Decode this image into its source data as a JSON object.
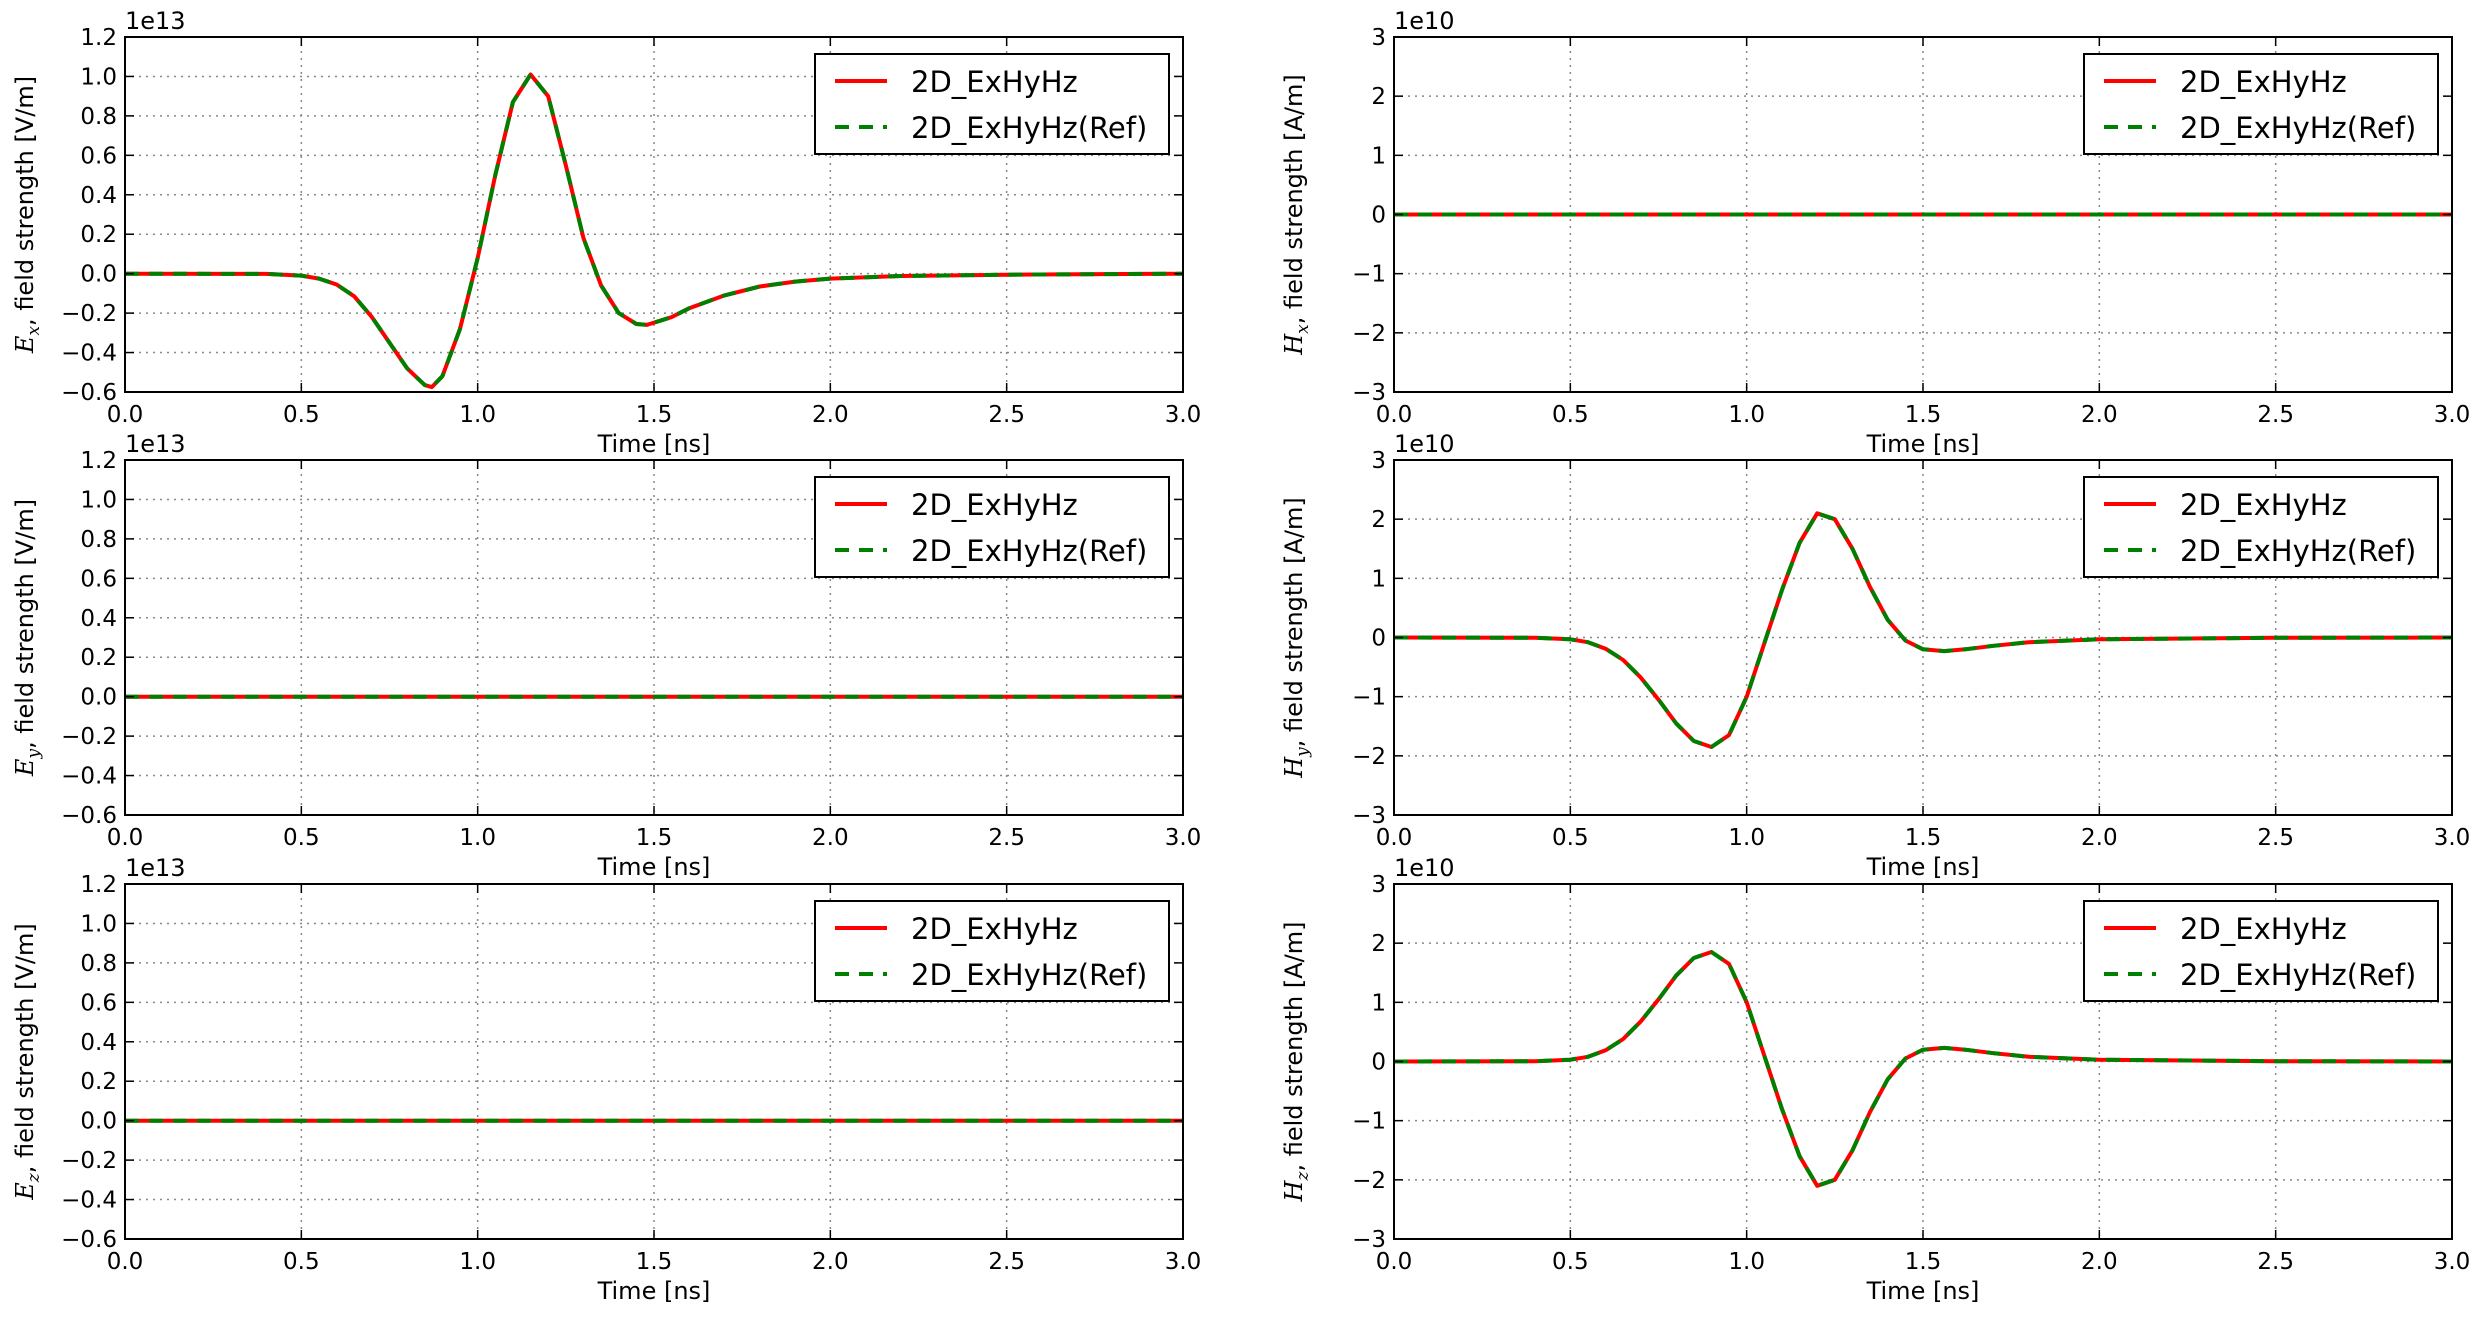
{
  "chart_data": [
    {
      "type": "line",
      "xlabel": "Time [ns]",
      "ylabel_symbol": "E",
      "ylabel_subscript": "x",
      "ylabel_text": ", field strength [V/m]",
      "exponent": "1e13",
      "xlim": [
        0.0,
        3.0
      ],
      "ylim": [
        -0.6,
        1.2
      ],
      "xticks": [
        "0.0",
        "0.5",
        "1.0",
        "1.5",
        "2.0",
        "2.5",
        "3.0"
      ],
      "yticks": [
        "−0.6",
        "−0.4",
        "−0.2",
        "0.0",
        "0.2",
        "0.4",
        "0.6",
        "0.8",
        "1.0",
        "1.2"
      ],
      "ytick_values": [
        -0.6,
        -0.4,
        -0.2,
        0.0,
        0.2,
        0.4,
        0.6,
        0.8,
        1.0,
        1.2
      ],
      "grid": true,
      "legend": "top-right",
      "series": [
        {
          "name": "2D_ExHyHz",
          "color": "#ff0000",
          "style": "solid",
          "x": [
            0.0,
            0.4,
            0.5,
            0.55,
            0.6,
            0.65,
            0.7,
            0.75,
            0.8,
            0.85,
            0.87,
            0.9,
            0.95,
            1.0,
            1.05,
            1.1,
            1.15,
            1.2,
            1.25,
            1.3,
            1.35,
            1.4,
            1.45,
            1.48,
            1.55,
            1.6,
            1.7,
            1.8,
            1.9,
            2.0,
            2.2,
            2.5,
            3.0
          ],
          "y": [
            0.0,
            -0.001,
            -0.01,
            -0.025,
            -0.055,
            -0.115,
            -0.22,
            -0.35,
            -0.48,
            -0.565,
            -0.575,
            -0.52,
            -0.28,
            0.08,
            0.5,
            0.87,
            1.01,
            0.9,
            0.55,
            0.18,
            -0.06,
            -0.2,
            -0.255,
            -0.26,
            -0.22,
            -0.175,
            -0.11,
            -0.065,
            -0.04,
            -0.025,
            -0.012,
            -0.005,
            0.0
          ]
        },
        {
          "name": "2D_ExHyHz(Ref)",
          "color": "#008000",
          "style": "dashed",
          "x": [
            0.0,
            0.4,
            0.5,
            0.55,
            0.6,
            0.65,
            0.7,
            0.75,
            0.8,
            0.85,
            0.87,
            0.9,
            0.95,
            1.0,
            1.05,
            1.1,
            1.15,
            1.2,
            1.25,
            1.3,
            1.35,
            1.4,
            1.45,
            1.48,
            1.55,
            1.6,
            1.7,
            1.8,
            1.9,
            2.0,
            2.2,
            2.5,
            3.0
          ],
          "y": [
            0.0,
            -0.001,
            -0.01,
            -0.025,
            -0.055,
            -0.115,
            -0.22,
            -0.35,
            -0.48,
            -0.565,
            -0.575,
            -0.52,
            -0.28,
            0.08,
            0.5,
            0.87,
            1.01,
            0.9,
            0.55,
            0.18,
            -0.06,
            -0.2,
            -0.255,
            -0.26,
            -0.22,
            -0.175,
            -0.11,
            -0.065,
            -0.04,
            -0.025,
            -0.012,
            -0.005,
            0.0
          ]
        }
      ]
    },
    {
      "type": "line",
      "xlabel": "Time [ns]",
      "ylabel_symbol": "H",
      "ylabel_subscript": "x",
      "ylabel_text": ", field strength [A/m]",
      "exponent": "1e10",
      "xlim": [
        0.0,
        3.0
      ],
      "ylim": [
        -3,
        3
      ],
      "xticks": [
        "0.0",
        "0.5",
        "1.0",
        "1.5",
        "2.0",
        "2.5",
        "3.0"
      ],
      "yticks": [
        "−3",
        "−2",
        "−1",
        "0",
        "1",
        "2",
        "3"
      ],
      "ytick_values": [
        -3,
        -2,
        -1,
        0,
        1,
        2,
        3
      ],
      "grid": true,
      "legend": "top-right",
      "series": [
        {
          "name": "2D_ExHyHz",
          "color": "#ff0000",
          "style": "solid",
          "x": [
            0.0,
            3.0
          ],
          "y": [
            0,
            0
          ]
        },
        {
          "name": "2D_ExHyHz(Ref)",
          "color": "#008000",
          "style": "dashed",
          "x": [
            0.0,
            3.0
          ],
          "y": [
            0,
            0
          ]
        }
      ]
    },
    {
      "type": "line",
      "xlabel": "Time [ns]",
      "ylabel_symbol": "E",
      "ylabel_subscript": "y",
      "ylabel_text": ", field strength [V/m]",
      "exponent": "1e13",
      "xlim": [
        0.0,
        3.0
      ],
      "ylim": [
        -0.6,
        1.2
      ],
      "xticks": [
        "0.0",
        "0.5",
        "1.0",
        "1.5",
        "2.0",
        "2.5",
        "3.0"
      ],
      "yticks": [
        "−0.6",
        "−0.4",
        "−0.2",
        "0.0",
        "0.2",
        "0.4",
        "0.6",
        "0.8",
        "1.0",
        "1.2"
      ],
      "ytick_values": [
        -0.6,
        -0.4,
        -0.2,
        0.0,
        0.2,
        0.4,
        0.6,
        0.8,
        1.0,
        1.2
      ],
      "grid": true,
      "legend": "top-right",
      "series": [
        {
          "name": "2D_ExHyHz",
          "color": "#ff0000",
          "style": "solid",
          "x": [
            0.0,
            3.0
          ],
          "y": [
            0,
            0
          ]
        },
        {
          "name": "2D_ExHyHz(Ref)",
          "color": "#008000",
          "style": "dashed",
          "x": [
            0.0,
            3.0
          ],
          "y": [
            0,
            0
          ]
        }
      ]
    },
    {
      "type": "line",
      "xlabel": "Time [ns]",
      "ylabel_symbol": "H",
      "ylabel_subscript": "y",
      "ylabel_text": ", field strength [A/m]",
      "exponent": "1e10",
      "xlim": [
        0.0,
        3.0
      ],
      "ylim": [
        -3,
        3
      ],
      "xticks": [
        "0.0",
        "0.5",
        "1.0",
        "1.5",
        "2.0",
        "2.5",
        "3.0"
      ],
      "yticks": [
        "−3",
        "−2",
        "−1",
        "0",
        "1",
        "2",
        "3"
      ],
      "ytick_values": [
        -3,
        -2,
        -1,
        0,
        1,
        2,
        3
      ],
      "grid": true,
      "legend": "top-right",
      "series": [
        {
          "name": "2D_ExHyHz",
          "color": "#ff0000",
          "style": "solid",
          "x": [
            0.0,
            0.4,
            0.5,
            0.55,
            0.6,
            0.65,
            0.7,
            0.75,
            0.8,
            0.85,
            0.9,
            0.95,
            1.0,
            1.05,
            1.1,
            1.15,
            1.2,
            1.25,
            1.3,
            1.35,
            1.4,
            1.45,
            1.5,
            1.56,
            1.62,
            1.7,
            1.8,
            2.0,
            2.5,
            3.0
          ],
          "y": [
            0.0,
            -0.005,
            -0.03,
            -0.08,
            -0.19,
            -0.38,
            -0.68,
            -1.05,
            -1.45,
            -1.75,
            -1.85,
            -1.65,
            -1.0,
            -0.1,
            0.8,
            1.6,
            2.1,
            2.0,
            1.5,
            0.85,
            0.3,
            -0.05,
            -0.2,
            -0.23,
            -0.2,
            -0.14,
            -0.08,
            -0.03,
            -0.005,
            0.0
          ]
        },
        {
          "name": "2D_ExHyHz(Ref)",
          "color": "#008000",
          "style": "dashed",
          "x": [
            0.0,
            0.4,
            0.5,
            0.55,
            0.6,
            0.65,
            0.7,
            0.75,
            0.8,
            0.85,
            0.9,
            0.95,
            1.0,
            1.05,
            1.1,
            1.15,
            1.2,
            1.25,
            1.3,
            1.35,
            1.4,
            1.45,
            1.5,
            1.56,
            1.62,
            1.7,
            1.8,
            2.0,
            2.5,
            3.0
          ],
          "y": [
            0.0,
            -0.005,
            -0.03,
            -0.08,
            -0.19,
            -0.38,
            -0.68,
            -1.05,
            -1.45,
            -1.75,
            -1.85,
            -1.65,
            -1.0,
            -0.1,
            0.8,
            1.6,
            2.1,
            2.0,
            1.5,
            0.85,
            0.3,
            -0.05,
            -0.2,
            -0.23,
            -0.2,
            -0.14,
            -0.08,
            -0.03,
            -0.005,
            0.0
          ]
        }
      ]
    },
    {
      "type": "line",
      "xlabel": "Time [ns]",
      "ylabel_symbol": "E",
      "ylabel_subscript": "z",
      "ylabel_text": ", field strength [V/m]",
      "exponent": "1e13",
      "xlim": [
        0.0,
        3.0
      ],
      "ylim": [
        -0.6,
        1.2
      ],
      "xticks": [
        "0.0",
        "0.5",
        "1.0",
        "1.5",
        "2.0",
        "2.5",
        "3.0"
      ],
      "yticks": [
        "−0.6",
        "−0.4",
        "−0.2",
        "0.0",
        "0.2",
        "0.4",
        "0.6",
        "0.8",
        "1.0",
        "1.2"
      ],
      "ytick_values": [
        -0.6,
        -0.4,
        -0.2,
        0.0,
        0.2,
        0.4,
        0.6,
        0.8,
        1.0,
        1.2
      ],
      "grid": true,
      "legend": "top-right",
      "series": [
        {
          "name": "2D_ExHyHz",
          "color": "#ff0000",
          "style": "solid",
          "x": [
            0.0,
            3.0
          ],
          "y": [
            0,
            0
          ]
        },
        {
          "name": "2D_ExHyHz(Ref)",
          "color": "#008000",
          "style": "dashed",
          "x": [
            0.0,
            3.0
          ],
          "y": [
            0,
            0
          ]
        }
      ]
    },
    {
      "type": "line",
      "xlabel": "Time [ns]",
      "ylabel_symbol": "H",
      "ylabel_subscript": "z",
      "ylabel_text": ", field strength [A/m]",
      "exponent": "1e10",
      "xlim": [
        0.0,
        3.0
      ],
      "ylim": [
        -3,
        3
      ],
      "xticks": [
        "0.0",
        "0.5",
        "1.0",
        "1.5",
        "2.0",
        "2.5",
        "3.0"
      ],
      "yticks": [
        "−3",
        "−2",
        "−1",
        "0",
        "1",
        "2",
        "3"
      ],
      "ytick_values": [
        -3,
        -2,
        -1,
        0,
        1,
        2,
        3
      ],
      "grid": true,
      "legend": "top-right",
      "series": [
        {
          "name": "2D_ExHyHz",
          "color": "#ff0000",
          "style": "solid",
          "x": [
            0.0,
            0.4,
            0.5,
            0.55,
            0.6,
            0.65,
            0.7,
            0.75,
            0.8,
            0.85,
            0.9,
            0.95,
            1.0,
            1.05,
            1.1,
            1.15,
            1.2,
            1.25,
            1.3,
            1.35,
            1.4,
            1.45,
            1.5,
            1.56,
            1.62,
            1.7,
            1.8,
            2.0,
            2.5,
            3.0
          ],
          "y": [
            0.0,
            0.005,
            0.03,
            0.08,
            0.19,
            0.38,
            0.68,
            1.05,
            1.45,
            1.75,
            1.85,
            1.65,
            1.0,
            0.1,
            -0.8,
            -1.6,
            -2.1,
            -2.0,
            -1.5,
            -0.85,
            -0.3,
            0.05,
            0.2,
            0.23,
            0.2,
            0.14,
            0.08,
            0.03,
            0.005,
            0.0
          ]
        },
        {
          "name": "2D_ExHyHz(Ref)",
          "color": "#008000",
          "style": "dashed",
          "x": [
            0.0,
            0.4,
            0.5,
            0.55,
            0.6,
            0.65,
            0.7,
            0.75,
            0.8,
            0.85,
            0.9,
            0.95,
            1.0,
            1.05,
            1.1,
            1.15,
            1.2,
            1.25,
            1.3,
            1.35,
            1.4,
            1.45,
            1.5,
            1.56,
            1.62,
            1.7,
            1.8,
            2.0,
            2.5,
            3.0
          ],
          "y": [
            0.0,
            0.005,
            0.03,
            0.08,
            0.19,
            0.38,
            0.68,
            1.05,
            1.45,
            1.75,
            1.85,
            1.65,
            1.0,
            0.1,
            -0.8,
            -1.6,
            -2.1,
            -2.0,
            -1.5,
            -0.85,
            -0.3,
            0.05,
            0.2,
            0.23,
            0.2,
            0.14,
            0.08,
            0.03,
            0.005,
            0.0
          ]
        }
      ]
    }
  ]
}
